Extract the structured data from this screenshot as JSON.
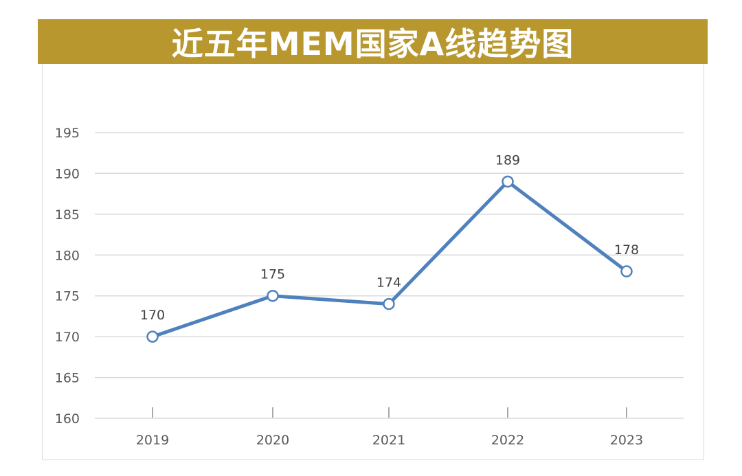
{
  "title": "近五年MEM国家A线趋势图",
  "colors": {
    "banner": "#b8972f",
    "line": "#4f81bd",
    "grid": "#d9d9d9",
    "marker_fill": "#ffffff"
  },
  "chart_data": {
    "type": "line",
    "title": "近五年MEM国家A线趋势图",
    "categories": [
      "2019",
      "2020",
      "2021",
      "2022",
      "2023"
    ],
    "series": [
      {
        "values": [
          170,
          175,
          174,
          189,
          178
        ]
      }
    ],
    "data_labels": [
      "170",
      "175",
      "174",
      "189",
      "178"
    ],
    "y_ticks": [
      "160",
      "165",
      "170",
      "175",
      "180",
      "185",
      "190",
      "195"
    ],
    "ylim": [
      160,
      195
    ],
    "xlabel": "",
    "ylabel": "",
    "grid": true,
    "legend": "none",
    "markers": "hollow-circle"
  }
}
